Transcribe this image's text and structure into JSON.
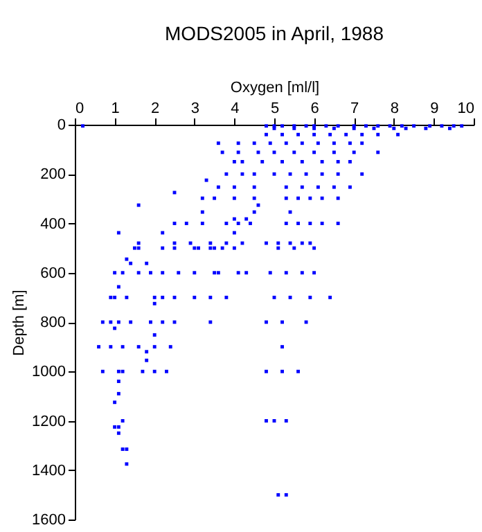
{
  "chart_data": {
    "type": "scatter",
    "title": "MODS2005 in April, 1988",
    "xlabel": "Oxygen [ml/l]",
    "ylabel": "Depth [m]",
    "xlim": [
      0,
      10
    ],
    "xticks": [
      0,
      1,
      2,
      3,
      4,
      5,
      6,
      7,
      8,
      9,
      10
    ],
    "ylim": [
      1600,
      0
    ],
    "yticks": [
      0,
      200,
      400,
      600,
      800,
      1000,
      1200,
      1400,
      1600
    ],
    "grid": false,
    "legend": false,
    "marker": "square",
    "series": [
      {
        "color": "#0000ff",
        "x": [
          0.2,
          4.8,
          5.0,
          5.2,
          5.5,
          5.8,
          6.0,
          6.3,
          6.6,
          7.0,
          7.3,
          7.6,
          7.9,
          8.2,
          8.5,
          8.9,
          9.2,
          9.5,
          9.7,
          5.0,
          5.5,
          6.0,
          6.5,
          7.0,
          7.5,
          8.0,
          8.3,
          8.8,
          9.4,
          4.8,
          5.2,
          5.6,
          6.0,
          6.4,
          6.8,
          7.2,
          7.6,
          8.1,
          3.6,
          4.1,
          4.5,
          4.9,
          5.3,
          5.7,
          6.1,
          6.5,
          6.9,
          7.2,
          3.7,
          4.1,
          4.6,
          5.0,
          5.5,
          6.0,
          6.5,
          7.0,
          7.6,
          4.0,
          4.2,
          4.7,
          5.2,
          5.7,
          6.2,
          6.6,
          6.9,
          3.8,
          4.2,
          4.5,
          5.0,
          5.4,
          5.8,
          6.2,
          6.6,
          7.2,
          3.3,
          3.6,
          4.0,
          4.5,
          5.3,
          5.7,
          6.1,
          6.5,
          6.9,
          2.5,
          3.2,
          3.5,
          4.0,
          4.5,
          5.3,
          5.6,
          5.9,
          6.2,
          6.6,
          1.6,
          4.6,
          3.2,
          4.5,
          5.4,
          4.0,
          4.3,
          2.5,
          2.8,
          3.2,
          3.8,
          4.1,
          4.4,
          5.3,
          5.6,
          5.9,
          6.2,
          6.6,
          1.1,
          2.2,
          4.0,
          1.6,
          2.5,
          2.9,
          3.4,
          3.8,
          4.2,
          4.8,
          5.1,
          5.4,
          5.7,
          5.9,
          1.5,
          1.6,
          2.2,
          2.5,
          3.0,
          3.1,
          3.4,
          3.5,
          3.7,
          4.0,
          5.1,
          5.5,
          6.0,
          1.3,
          1.4,
          1.8,
          1.0,
          1.2,
          1.6,
          1.9,
          2.2,
          2.6,
          3.0,
          3.5,
          3.6,
          4.1,
          4.3,
          4.9,
          5.3,
          5.7,
          6.0,
          1.1,
          0.9,
          1.0,
          1.3,
          2.0,
          2.2,
          2.5,
          3.0,
          3.4,
          3.8,
          5.0,
          5.4,
          5.9,
          6.4,
          2.0,
          0.7,
          0.9,
          1.1,
          1.4,
          1.9,
          2.2,
          2.5,
          3.4,
          4.8,
          5.2,
          5.8,
          1.0,
          2.0,
          0.6,
          0.9,
          1.2,
          1.6,
          2.0,
          2.4,
          5.2,
          1.8,
          1.8,
          0.7,
          1.1,
          1.2,
          1.7,
          2.0,
          2.3,
          4.8,
          5.2,
          5.6,
          1.1,
          1.1,
          1.0,
          1.2,
          4.8,
          5.0,
          5.3,
          1.0,
          1.1,
          1.1,
          1.2,
          1.3,
          1.3,
          5.1,
          5.3
        ],
        "values": [
          5,
          5,
          5,
          5,
          5,
          5,
          5,
          5,
          5,
          5,
          5,
          5,
          5,
          5,
          5,
          5,
          5,
          5,
          5,
          15,
          15,
          15,
          15,
          15,
          15,
          15,
          15,
          15,
          15,
          40,
          40,
          40,
          40,
          40,
          40,
          40,
          40,
          40,
          75,
          75,
          75,
          75,
          75,
          75,
          75,
          75,
          75,
          75,
          112,
          112,
          112,
          112,
          112,
          112,
          112,
          112,
          112,
          150,
          150,
          150,
          150,
          150,
          150,
          150,
          150,
          200,
          200,
          200,
          200,
          200,
          200,
          200,
          200,
          200,
          225,
          253,
          253,
          253,
          253,
          253,
          253,
          253,
          253,
          275,
          298,
          298,
          298,
          298,
          298,
          298,
          298,
          298,
          298,
          326,
          326,
          354,
          354,
          354,
          382,
          382,
          400,
          400,
          400,
          400,
          400,
          400,
          400,
          400,
          400,
          400,
          400,
          438,
          438,
          438,
          480,
          480,
          480,
          480,
          480,
          480,
          480,
          480,
          480,
          480,
          480,
          500,
          500,
          500,
          500,
          500,
          500,
          500,
          500,
          500,
          500,
          500,
          500,
          500,
          545,
          562,
          562,
          600,
          600,
          600,
          600,
          600,
          600,
          600,
          600,
          600,
          600,
          600,
          600,
          600,
          600,
          600,
          657,
          700,
          700,
          700,
          700,
          700,
          700,
          700,
          700,
          700,
          700,
          700,
          700,
          700,
          725,
          800,
          800,
          800,
          800,
          800,
          800,
          800,
          800,
          800,
          800,
          800,
          825,
          852,
          900,
          900,
          900,
          900,
          900,
          900,
          900,
          920,
          955,
          1000,
          1000,
          1000,
          1000,
          1000,
          1000,
          1000,
          1000,
          1000,
          1040,
          1090,
          1125,
          1200,
          1200,
          1200,
          1200,
          1225,
          1225,
          1250,
          1315,
          1315,
          1375,
          1500,
          1500
        ]
      }
    ]
  }
}
